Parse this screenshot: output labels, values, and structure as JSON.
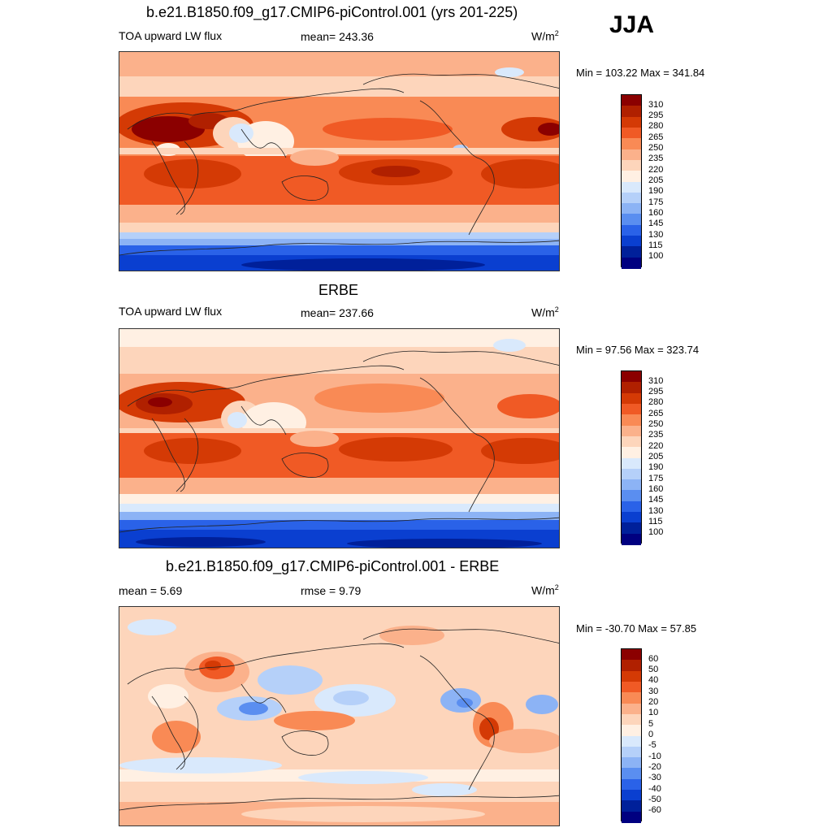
{
  "season": "JJA",
  "panels": [
    {
      "title": "b.e21.B1850.f09_g17.CMIP6-piControl.001 (yrs 201-225)",
      "left_label": "TOA upward LW flux",
      "center_label": "mean= 243.36",
      "units": "W/m",
      "units_sup": "2",
      "minmax": "Min = 103.22 Max = 341.84",
      "levels": [
        "310",
        "295",
        "280",
        "265",
        "250",
        "235",
        "220",
        "205",
        "190",
        "175",
        "160",
        "145",
        "130",
        "115",
        "100"
      ]
    },
    {
      "title": "ERBE",
      "left_label": "TOA upward LW flux",
      "center_label": "mean= 237.66",
      "units": "W/m",
      "units_sup": "2",
      "minmax": "Min =  97.56 Max = 323.74",
      "levels": [
        "310",
        "295",
        "280",
        "265",
        "250",
        "235",
        "220",
        "205",
        "190",
        "175",
        "160",
        "145",
        "130",
        "115",
        "100"
      ]
    },
    {
      "title": "b.e21.B1850.f09_g17.CMIP6-piControl.001 - ERBE",
      "left_label": "mean =   5.69",
      "center_label": "rmse =   9.79",
      "units": "W/m",
      "units_sup": "2",
      "minmax": "Min = -30.70 Max =  57.85",
      "levels": [
        "60",
        "50",
        "40",
        "30",
        "20",
        "10",
        "5",
        "0",
        "-5",
        "-10",
        "-20",
        "-30",
        "-40",
        "-50",
        "-60"
      ]
    }
  ],
  "colors": {
    "flux_scale": [
      "#8b0000",
      "#b02000",
      "#d43a05",
      "#f05a25",
      "#f98a55",
      "#fbb18b",
      "#fdd5bb",
      "#fff0e3",
      "#d9e9fc",
      "#b5d0f9",
      "#8cb3f5",
      "#5a8ef0",
      "#2a62e8",
      "#0a3fd0",
      "#00209a",
      "#000080"
    ],
    "diff_scale": [
      "#8b0000",
      "#b02000",
      "#d43a05",
      "#f05a25",
      "#f98a55",
      "#fbb18b",
      "#fdd5bb",
      "#fff0e3",
      "#d9e9fc",
      "#b5d0f9",
      "#8cb3f5",
      "#5a8ef0",
      "#2a62e8",
      "#0a3fd0",
      "#00209a",
      "#000080"
    ],
    "coast": "#222222"
  }
}
